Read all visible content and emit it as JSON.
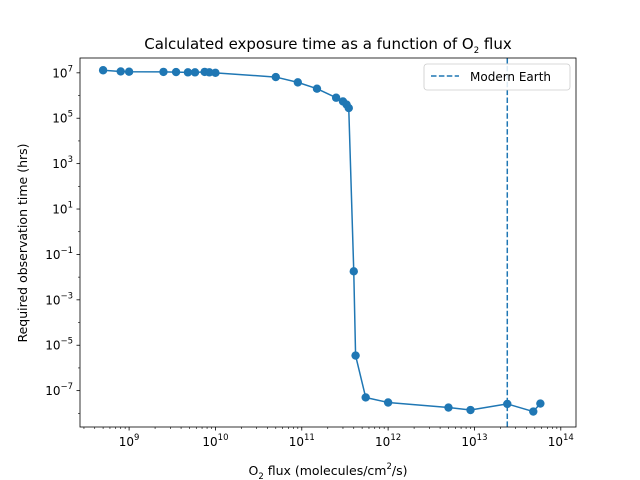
{
  "chart_data": {
    "type": "line",
    "title_main": "Calculated exposure time as a function of O",
    "title_sub": "2",
    "title_tail": " flux",
    "xlabel_main": "O",
    "xlabel_sub": "2",
    "xlabel_mid": " flux (molecules/cm",
    "xlabel_sup": "2",
    "xlabel_tail": "/s)",
    "ylabel": "Required observation time (hrs)",
    "x_scale": "log",
    "y_scale": "log",
    "xlim": [
      270000000.0,
      150000000000000.0
    ],
    "ylim": [
      2.5e-09,
      45000000.0
    ],
    "x_ticks": [
      {
        "value": 1000000000.0,
        "base": "10",
        "exp": "9"
      },
      {
        "value": 10000000000.0,
        "base": "10",
        "exp": "10"
      },
      {
        "value": 100000000000.0,
        "base": "10",
        "exp": "11"
      },
      {
        "value": 1000000000000.0,
        "base": "10",
        "exp": "12"
      },
      {
        "value": 10000000000000.0,
        "base": "10",
        "exp": "13"
      },
      {
        "value": 100000000000000.0,
        "base": "10",
        "exp": "14"
      }
    ],
    "y_ticks": [
      {
        "value": 10000000.0,
        "base": "10",
        "exp": "7"
      },
      {
        "value": 100000.0,
        "base": "10",
        "exp": "5"
      },
      {
        "value": 1000.0,
        "base": "10",
        "exp": "3"
      },
      {
        "value": 10.0,
        "base": "10",
        "exp": "1"
      },
      {
        "value": 0.1,
        "base": "10",
        "exp": "−1"
      },
      {
        "value": 0.001,
        "base": "10",
        "exp": "−3"
      },
      {
        "value": 1e-05,
        "base": "10",
        "exp": "−5"
      },
      {
        "value": 1e-07,
        "base": "10",
        "exp": "−7"
      }
    ],
    "series": [
      {
        "color": "#1f77b4",
        "marker": "circle",
        "x": [
          500000000.0,
          800000000.0,
          1000000000.0,
          2500000000.0,
          3500000000.0,
          4800000000.0,
          5800000000.0,
          7500000000.0,
          8500000000.0,
          10000000000.0,
          50000000000.0,
          90000000000.0,
          150000000000.0,
          250000000000.0,
          300000000000.0,
          330000000000.0,
          350000000000.0,
          400000000000.0,
          420000000000.0,
          550000000000.0,
          1000000000000.0,
          5000000000000.0,
          9000000000000.0,
          24000000000000.0,
          48000000000000.0,
          58000000000000.0
        ],
        "y": [
          13000000.0,
          11500000.0,
          11200000.0,
          11000000.0,
          10800000.0,
          10500000.0,
          10500000.0,
          11000000.0,
          10500000.0,
          10000000.0,
          6500000.0,
          3800000.0,
          2000000.0,
          800000.0,
          550000.0,
          400000.0,
          280000.0,
          0.018,
          3.5e-06,
          5e-08,
          3e-08,
          1.8e-08,
          1.4e-08,
          2.6e-08,
          1.2e-08,
          2.7e-08
        ]
      }
    ],
    "reference_line": {
      "label": "Modern Earth",
      "x": 24000000000000.0,
      "color": "#1f77b4",
      "style": "dashed"
    },
    "legend_placement": "top-right",
    "grid": false
  }
}
